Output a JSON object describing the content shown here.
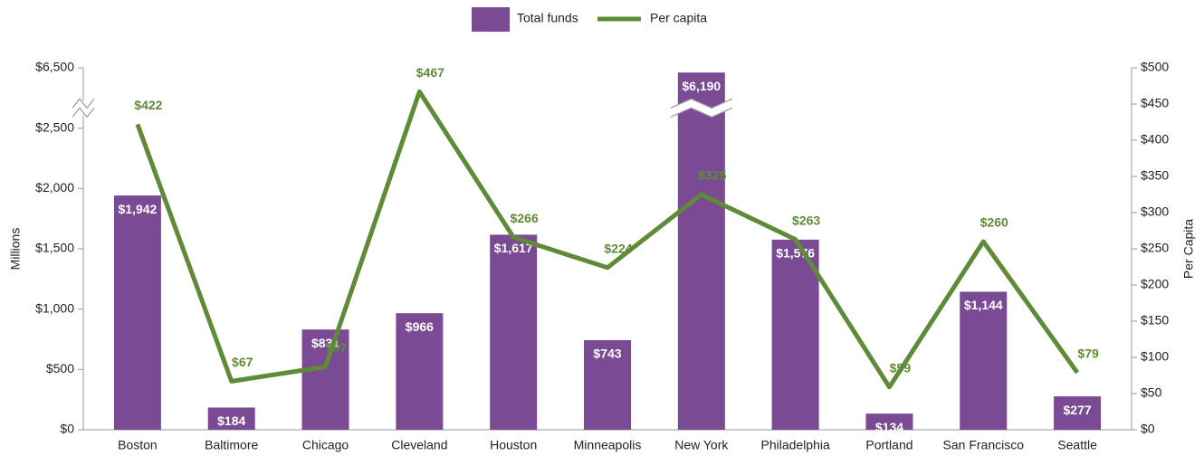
{
  "chart_data": {
    "type": "bar_line",
    "categories": [
      "Boston",
      "Baltimore",
      "Chicago",
      "Cleveland",
      "Houston",
      "Minneapolis",
      "New York",
      "Philadelphia",
      "Portland",
      "San Francisco",
      "Seattle"
    ],
    "series": [
      {
        "name": "Total funds",
        "type": "bar",
        "color": "#7b4a94",
        "values": [
          1942,
          184,
          831,
          966,
          1617,
          743,
          6190,
          1576,
          134,
          1144,
          277
        ],
        "value_labels": [
          "$1,942",
          "$184",
          "$831",
          "$966",
          "$1,617",
          "$743",
          "$6,190",
          "$1,576",
          "$134",
          "$1,144",
          "$277"
        ]
      },
      {
        "name": "Per capita",
        "type": "line",
        "axis": "y2",
        "color": "#5f8a36",
        "values": [
          422,
          67,
          87,
          467,
          266,
          224,
          325,
          263,
          59,
          260,
          79
        ],
        "value_labels": [
          "$422",
          "$67",
          "$87",
          "$467",
          "$266",
          "$224",
          "$325",
          "$263",
          "$59",
          "$260",
          "$79"
        ]
      }
    ],
    "y_label": "Millions",
    "y2_label": "Per Capita",
    "ylim": [
      0,
      6500
    ],
    "yticks": [
      {
        "value": 0,
        "label": "$0"
      },
      {
        "value": 500,
        "label": "$500"
      },
      {
        "value": 1000,
        "label": "$1,000"
      },
      {
        "value": 1500,
        "label": "$1,500"
      },
      {
        "value": 2000,
        "label": "$2,000"
      },
      {
        "value": 2500,
        "label": "$2,500"
      },
      {
        "value": 6500,
        "label": "$6,500"
      }
    ],
    "broken_axis": true,
    "y2lim": [
      0,
      500
    ],
    "y2ticks": [
      {
        "value": 0,
        "label": "$0"
      },
      {
        "value": 50,
        "label": "$50"
      },
      {
        "value": 100,
        "label": "$100"
      },
      {
        "value": 150,
        "label": "$150"
      },
      {
        "value": 200,
        "label": "$200"
      },
      {
        "value": 250,
        "label": "$250"
      },
      {
        "value": 300,
        "label": "$300"
      },
      {
        "value": 350,
        "label": "$350"
      },
      {
        "value": 400,
        "label": "$400"
      },
      {
        "value": 450,
        "label": "$450"
      },
      {
        "value": 500,
        "label": "$500"
      }
    ],
    "legend": "top"
  }
}
